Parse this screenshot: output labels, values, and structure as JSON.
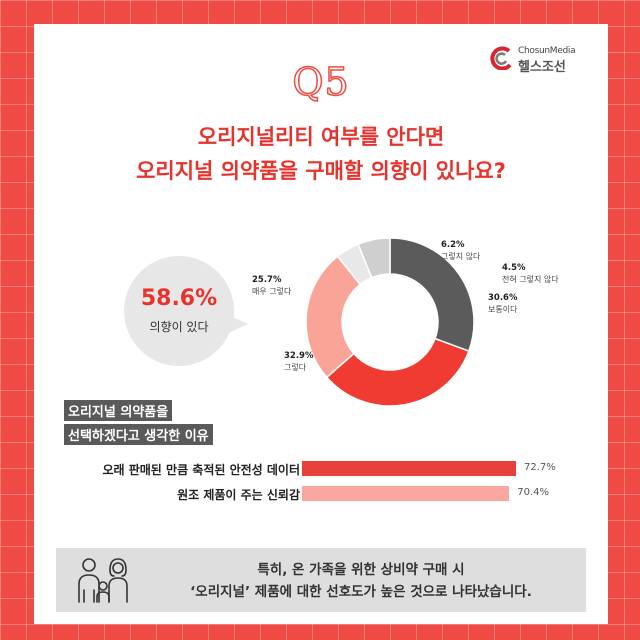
{
  "brand": {
    "en": "ChosunMedia",
    "ko": "헬스조선"
  },
  "question_number": "Q5",
  "title_lines": [
    "오리지널리티 여부를 안다면",
    "오리지널 의약품을 구매할 의향이 있나요?"
  ],
  "highlight": {
    "value": "58.6%",
    "label": "의향이 있다"
  },
  "chart_data": [
    {
      "type": "pie",
      "slices": [
        {
          "label": "그렇지 않다",
          "value": 6.2,
          "value_text": "6.2%",
          "color": "#cfcfcf"
        },
        {
          "label": "전혀 그렇지 않다",
          "value": 4.5,
          "value_text": "4.5%",
          "color": "#e8e8e8"
        },
        {
          "label": "보통이다",
          "value": 30.6,
          "value_text": "30.6%",
          "color": "#5b5b5b"
        },
        {
          "label": "그렇다",
          "value": 32.9,
          "value_text": "32.9%",
          "color": "#ef3b31"
        },
        {
          "label": "매우 그렇다",
          "value": 25.7,
          "value_text": "25.7%",
          "color": "#f9a497"
        }
      ]
    },
    {
      "type": "bar",
      "title_lines": [
        "오리지널 의약품을",
        "선택하겠다고 생각한 이유"
      ],
      "categories": [
        "오래 판매된 만큼 축적된 안전성 데이터",
        "원조 제품이 주는 신뢰감"
      ],
      "values": [
        72.7,
        70.4
      ],
      "value_texts": [
        "72.7%",
        "70.4%"
      ],
      "colors": [
        "#e8403a",
        "#f9a6a0"
      ]
    }
  ],
  "footer": {
    "lines": [
      "특히, 온 가족을 위한 상비약 구매 시",
      "‘오리지널’ 제품에 대한 선호도가 높은 것으로 나타났습니다."
    ],
    "icon": "family-icon"
  }
}
